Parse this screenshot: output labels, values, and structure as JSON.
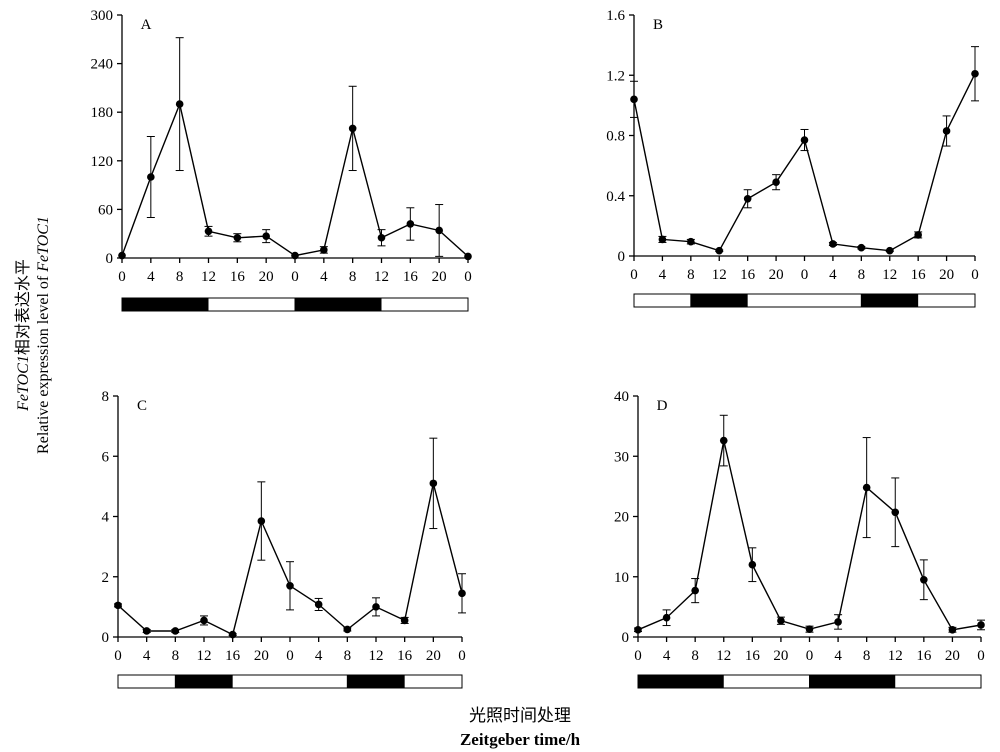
{
  "ylabel": {
    "line1_italic": "FeTOC1",
    "line1_rest": "相对表达水平",
    "line2_plain": "Relative expression level of ",
    "line2_italic": "FeTOC1"
  },
  "xlabel": {
    "line1": "光照时间处理",
    "line2": "Zeitgeber time/h"
  },
  "colors": {
    "dark": "#000000",
    "light": "#ffffff"
  },
  "chart_data": [
    {
      "type": "line",
      "panel": "A",
      "x": [
        "0",
        "4",
        "8",
        "12",
        "16",
        "20",
        "0",
        "4",
        "8",
        "12",
        "16",
        "20",
        "0"
      ],
      "ylim": [
        0,
        300
      ],
      "yticks": [
        "0",
        "60",
        "120",
        "180",
        "240",
        "300"
      ],
      "series": [
        {
          "values": [
            3,
            100,
            190,
            33,
            25,
            27,
            3,
            10,
            160,
            25,
            42,
            34,
            2
          ],
          "errors": [
            0,
            50,
            82,
            6,
            5,
            8,
            0,
            4,
            52,
            10,
            20,
            32,
            0
          ]
        }
      ],
      "photoperiod": [
        "dark",
        "dark",
        "dark",
        "light",
        "light",
        "light",
        "dark",
        "dark",
        "dark",
        "light",
        "light",
        "light"
      ],
      "grid": false
    },
    {
      "type": "line",
      "panel": "B",
      "x": [
        "0",
        "4",
        "8",
        "12",
        "16",
        "20",
        "0",
        "4",
        "8",
        "12",
        "16",
        "20",
        "0"
      ],
      "ylim": [
        0,
        1.6
      ],
      "yticks": [
        "0",
        "0.4",
        "0.8",
        "1.2",
        "1.6"
      ],
      "series": [
        {
          "values": [
            1.04,
            0.11,
            0.095,
            0.035,
            0.38,
            0.49,
            0.77,
            0.08,
            0.055,
            0.035,
            0.14,
            0.83,
            1.21
          ],
          "errors": [
            0.12,
            0.02,
            0.015,
            0.005,
            0.06,
            0.05,
            0.07,
            0.01,
            0.008,
            0.005,
            0.02,
            0.1,
            0.18
          ]
        }
      ],
      "photoperiod": [
        "light",
        "light",
        "dark",
        "dark",
        "light",
        "light",
        "light",
        "light",
        "dark",
        "dark",
        "light",
        "light"
      ],
      "grid": false
    },
    {
      "type": "line",
      "panel": "C",
      "x": [
        "0",
        "4",
        "8",
        "12",
        "16",
        "20",
        "0",
        "4",
        "8",
        "12",
        "16",
        "20",
        "0"
      ],
      "ylim": [
        0,
        8
      ],
      "yticks": [
        "0",
        "2",
        "4",
        "6",
        "8"
      ],
      "series": [
        {
          "values": [
            1.05,
            0.2,
            0.2,
            0.55,
            0.08,
            3.85,
            1.7,
            1.08,
            0.25,
            1.0,
            0.55,
            5.1,
            1.45
          ],
          "errors": [
            0.05,
            0.05,
            0.05,
            0.15,
            0.03,
            1.3,
            0.8,
            0.2,
            0.05,
            0.3,
            0.1,
            1.5,
            0.65
          ]
        }
      ],
      "photoperiod": [
        "light",
        "light",
        "dark",
        "dark",
        "light",
        "light",
        "light",
        "light",
        "dark",
        "dark",
        "light",
        "light"
      ],
      "grid": false
    },
    {
      "type": "line",
      "panel": "D",
      "x": [
        "0",
        "4",
        "8",
        "12",
        "16",
        "20",
        "0",
        "4",
        "8",
        "12",
        "16",
        "20",
        "0"
      ],
      "ylim": [
        0,
        40
      ],
      "yticks": [
        "0",
        "10",
        "20",
        "30",
        "40"
      ],
      "series": [
        {
          "values": [
            1.2,
            3.2,
            7.7,
            32.6,
            12.0,
            2.7,
            1.3,
            2.5,
            24.8,
            20.7,
            9.5,
            1.2,
            2.0
          ],
          "errors": [
            0.3,
            1.3,
            2.0,
            4.2,
            2.8,
            0.6,
            0.5,
            1.2,
            8.3,
            5.7,
            3.3,
            0.4,
            0.8
          ]
        }
      ],
      "photoperiod": [
        "dark",
        "dark",
        "dark",
        "light",
        "light",
        "light",
        "dark",
        "dark",
        "dark",
        "light",
        "light",
        "light"
      ],
      "grid": false
    }
  ]
}
